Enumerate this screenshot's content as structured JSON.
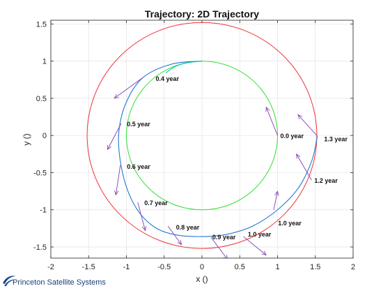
{
  "logo": {
    "text": "Princeton Satellite Systems",
    "colors": {
      "swoosh": "#1a4b8c",
      "text": "#1a3f7a"
    }
  },
  "chart_data": {
    "type": "line",
    "title": "Trajectory: 2D Trajectory",
    "xlabel": "x ()",
    "ylabel": "y ()",
    "xlim": [
      -2,
      2
    ],
    "ylim": [
      -1.65,
      1.55
    ],
    "xticks": [
      "-2",
      "-1.5",
      "-1",
      "-0.5",
      "0",
      "0.5",
      "1",
      "1.5",
      "2"
    ],
    "xtick_values": [
      -2,
      -1.5,
      -1,
      -0.5,
      0,
      0.5,
      1,
      1.5,
      2
    ],
    "yticks": [
      "1.5",
      "1",
      "0.5",
      "0",
      "-0.5",
      "-1",
      "-1.5"
    ],
    "ytick_values": [
      1.5,
      1,
      0.5,
      0,
      -0.5,
      -1,
      -1.5
    ],
    "grid": true,
    "series": [
      {
        "shape": "circle",
        "center": [
          0,
          0
        ],
        "radius": 1.0,
        "color": "#33dd33"
      },
      {
        "shape": "circle",
        "center": [
          0,
          0
        ],
        "radius": 1.52,
        "color": "#ee3333"
      },
      {
        "shape": "path",
        "color": "#1f77d4",
        "x": [
          0.0,
          -0.4,
          -0.78,
          -1.0,
          -1.1,
          -1.08,
          -0.98,
          -0.82,
          -0.6,
          -0.33,
          0.0,
          0.33,
          0.67,
          1.0,
          1.28,
          1.45,
          1.52,
          1.52
        ],
        "y": [
          1.0,
          0.96,
          0.78,
          0.45,
          0.05,
          -0.35,
          -0.75,
          -1.05,
          -1.25,
          -1.34,
          -1.36,
          -1.33,
          -1.22,
          -1.0,
          -0.7,
          -0.35,
          -0.05,
          0.0
        ]
      },
      {
        "shape": "path",
        "color": "#00c8a0",
        "x": [
          0.0,
          -0.18,
          -0.35,
          -0.48
        ],
        "y": [
          1.0,
          0.98,
          0.93,
          0.84
        ]
      }
    ],
    "annotations": [
      {
        "label": "0.0 year",
        "x": 1.0,
        "y": 0.0
      },
      {
        "label": "0.4 year",
        "x": -0.65,
        "y": 0.77
      },
      {
        "label": "0.5 year",
        "x": -1.03,
        "y": 0.16
      },
      {
        "label": "0.6 year",
        "x": -1.03,
        "y": -0.41
      },
      {
        "label": "0.7 year",
        "x": -0.8,
        "y": -0.9
      },
      {
        "label": "0.8 year",
        "x": -0.38,
        "y": -1.23
      },
      {
        "label": "0.9 year",
        "x": 0.1,
        "y": -1.36
      },
      {
        "label": "1.0 year",
        "x": 0.57,
        "y": -1.32
      },
      {
        "label": "1.0 year",
        "x": 0.97,
        "y": -1.17
      },
      {
        "label": "1.2 year",
        "x": 1.45,
        "y": -0.6
      },
      {
        "label": "1.3 year",
        "x": 1.58,
        "y": -0.04
      }
    ],
    "vectors": [
      {
        "x": 1.0,
        "y": 0.0,
        "dx": -0.15,
        "dy": 0.38
      },
      {
        "x": -0.78,
        "y": 0.78,
        "dx": -0.38,
        "dy": -0.28
      },
      {
        "x": -1.07,
        "y": 0.16,
        "dx": -0.18,
        "dy": -0.35
      },
      {
        "x": -1.08,
        "y": -0.4,
        "dx": -0.06,
        "dy": -0.4
      },
      {
        "x": -0.85,
        "y": -0.9,
        "dx": 0.1,
        "dy": -0.38
      },
      {
        "x": -0.45,
        "y": -1.22,
        "dx": 0.18,
        "dy": -0.25
      },
      {
        "x": 0.12,
        "y": -1.37,
        "dx": 0.22,
        "dy": -0.3
      },
      {
        "x": 0.55,
        "y": -1.36,
        "dx": 0.3,
        "dy": -0.25
      },
      {
        "x": 0.95,
        "y": -1.0,
        "dx": 0.05,
        "dy": 0.25
      },
      {
        "x": 1.45,
        "y": -0.6,
        "dx": -0.2,
        "dy": 0.35
      },
      {
        "x": 1.52,
        "y": 0.0,
        "dx": -0.25,
        "dy": 0.28
      }
    ],
    "vector_color": "#8e4fb8"
  }
}
